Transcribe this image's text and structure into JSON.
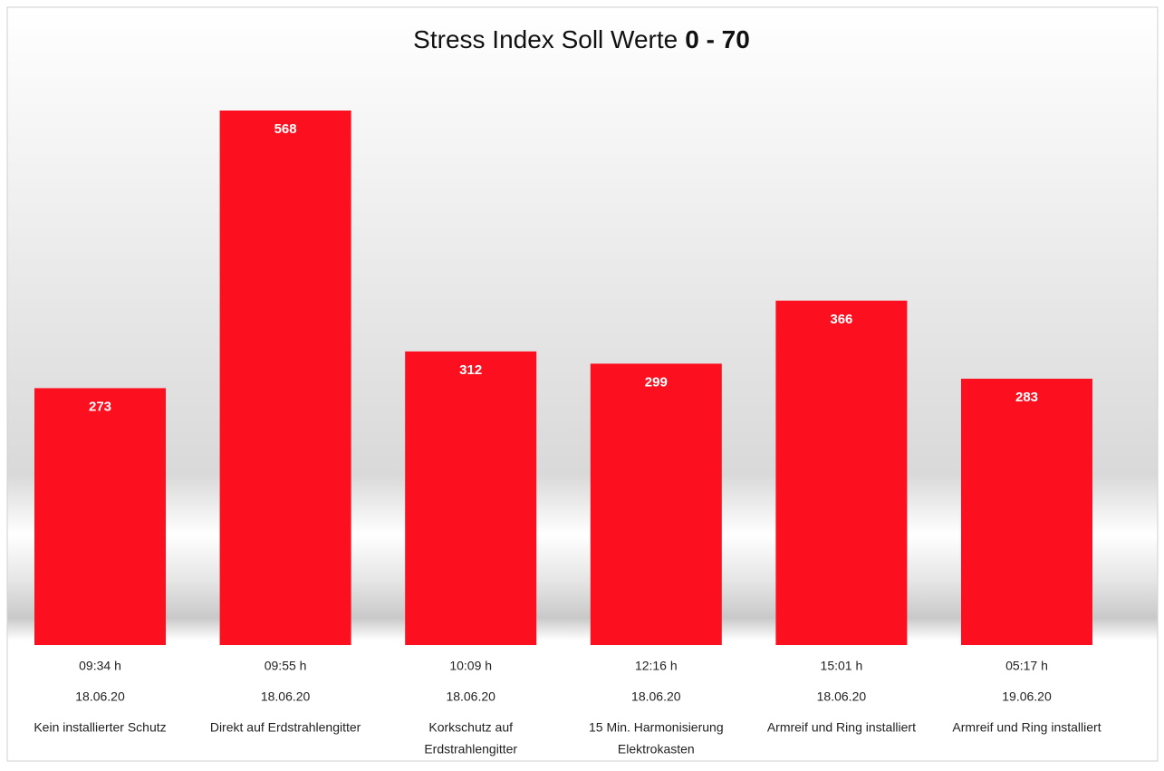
{
  "chart_data": {
    "type": "bar",
    "title": "Stress Index Soll Werte",
    "title_emphasis": "0 - 70",
    "categories": [
      [
        "09:34 h",
        "18.06.20",
        "Kein installierter Schutz"
      ],
      [
        "09:55 h",
        "18.06.20",
        "Direkt auf Erdstrahlengitter"
      ],
      [
        "10:09 h",
        "18.06.20",
        "Korkschutz auf",
        "Erdstrahlengitter"
      ],
      [
        "12:16 h",
        "18.06.20",
        "15 Min. Harmonisierung",
        "Elektrokasten"
      ],
      [
        "15:01 h",
        "18.06.20",
        "Armreif und Ring installiert"
      ],
      [
        "05:17 h",
        "19.06.20",
        "Armreif und Ring installiert"
      ]
    ],
    "values": [
      273,
      568,
      312,
      299,
      366,
      283
    ],
    "color": "#fc0f1e"
  }
}
